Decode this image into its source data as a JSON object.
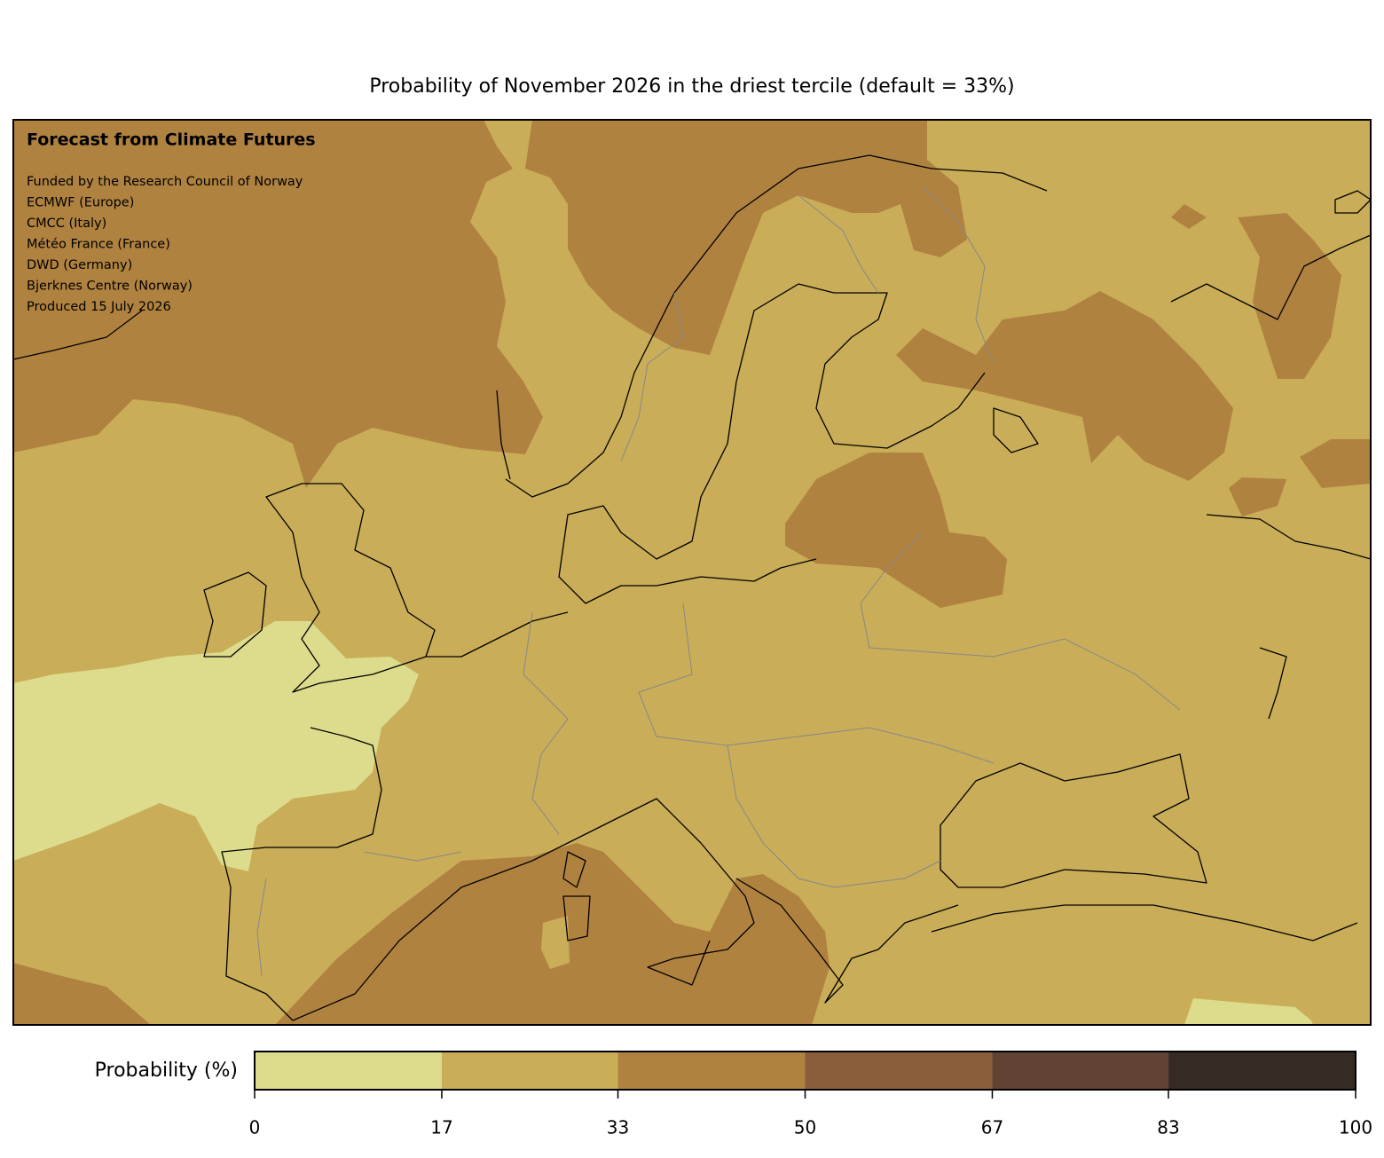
{
  "title": "Probability of November 2026 in the driest tercile (default = 33%)",
  "annotations": {
    "heading": "Forecast from Climate Futures",
    "lines": [
      "Funded by the Research Council of Norway",
      "ECMWF (Europe)",
      "CMCC (Italy)",
      "Météo France (France)",
      "DWD (Germany)",
      "Bjerknes Centre (Norway)",
      "Produced 15 July 2026"
    ]
  },
  "colorbar": {
    "label": "Probability (%)",
    "lim": [
      0,
      100
    ],
    "bounds": [
      0,
      17,
      33,
      50,
      67,
      83,
      100
    ],
    "colors": [
      "#dddc8c",
      "#c9ad58",
      "#b08240",
      "#8b5e3b",
      "#614333",
      "#362a25"
    ]
  }
}
